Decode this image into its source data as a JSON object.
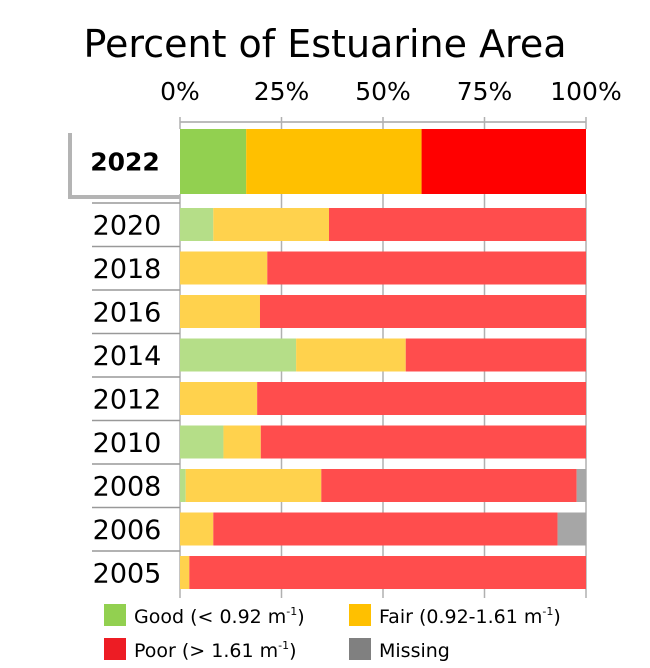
{
  "chart_data": {
    "type": "bar",
    "orientation": "horizontal",
    "stacked": true,
    "title": "Percent of Estuarine Area",
    "xlabel": "",
    "ylabel": "",
    "xlim": [
      0,
      100
    ],
    "x_ticks": [
      "0%",
      "25%",
      "50%",
      "75%",
      "100%"
    ],
    "grid": true,
    "legend_position": "bottom",
    "highlighted_category": "2022",
    "categories": [
      "2022",
      "2020",
      "2018",
      "2016",
      "2014",
      "2012",
      "2010",
      "2008",
      "2006",
      "2005"
    ],
    "series": [
      {
        "name": "Good (< 0.92 m-1)",
        "color": "#92d050",
        "faded_color": "#b5de88",
        "values": [
          16.3,
          8.2,
          0,
          0,
          28.6,
          0,
          10.7,
          1.4,
          0,
          0
        ]
      },
      {
        "name": "Fair (0.92-1.61 m-1)",
        "color": "#ffc000",
        "faded_color": "#ffd24d",
        "values": [
          43.2,
          28.5,
          21.5,
          19.7,
          27.0,
          19.0,
          9.2,
          33.4,
          8.2,
          2.3
        ]
      },
      {
        "name": "Poor (> 1.61 m-1)",
        "color": "#ff0000",
        "faded_color": "#ff4d4d",
        "values": [
          40.5,
          63.3,
          78.5,
          80.3,
          44.4,
          81.0,
          80.1,
          62.9,
          84.8,
          97.7
        ]
      },
      {
        "name": "Missing",
        "color": "#808080",
        "faded_color": "#a6a6a6",
        "values": [
          0,
          0,
          0,
          0,
          0,
          0,
          0,
          2.3,
          7.0,
          0
        ]
      }
    ],
    "legend": [
      {
        "label": "Good (< 0.92 m",
        "sup": "-1",
        "close": ")",
        "color": "#92d050"
      },
      {
        "label": "Fair (0.92-1.61 m",
        "sup": "-1",
        "close": ")",
        "color": "#ffc000"
      },
      {
        "label": "Poor (> 1.61 m",
        "sup": "-1",
        "close": ")",
        "color": "#ed1c24"
      },
      {
        "label": "Missing",
        "sup": "",
        "close": "",
        "color": "#808080"
      }
    ]
  }
}
